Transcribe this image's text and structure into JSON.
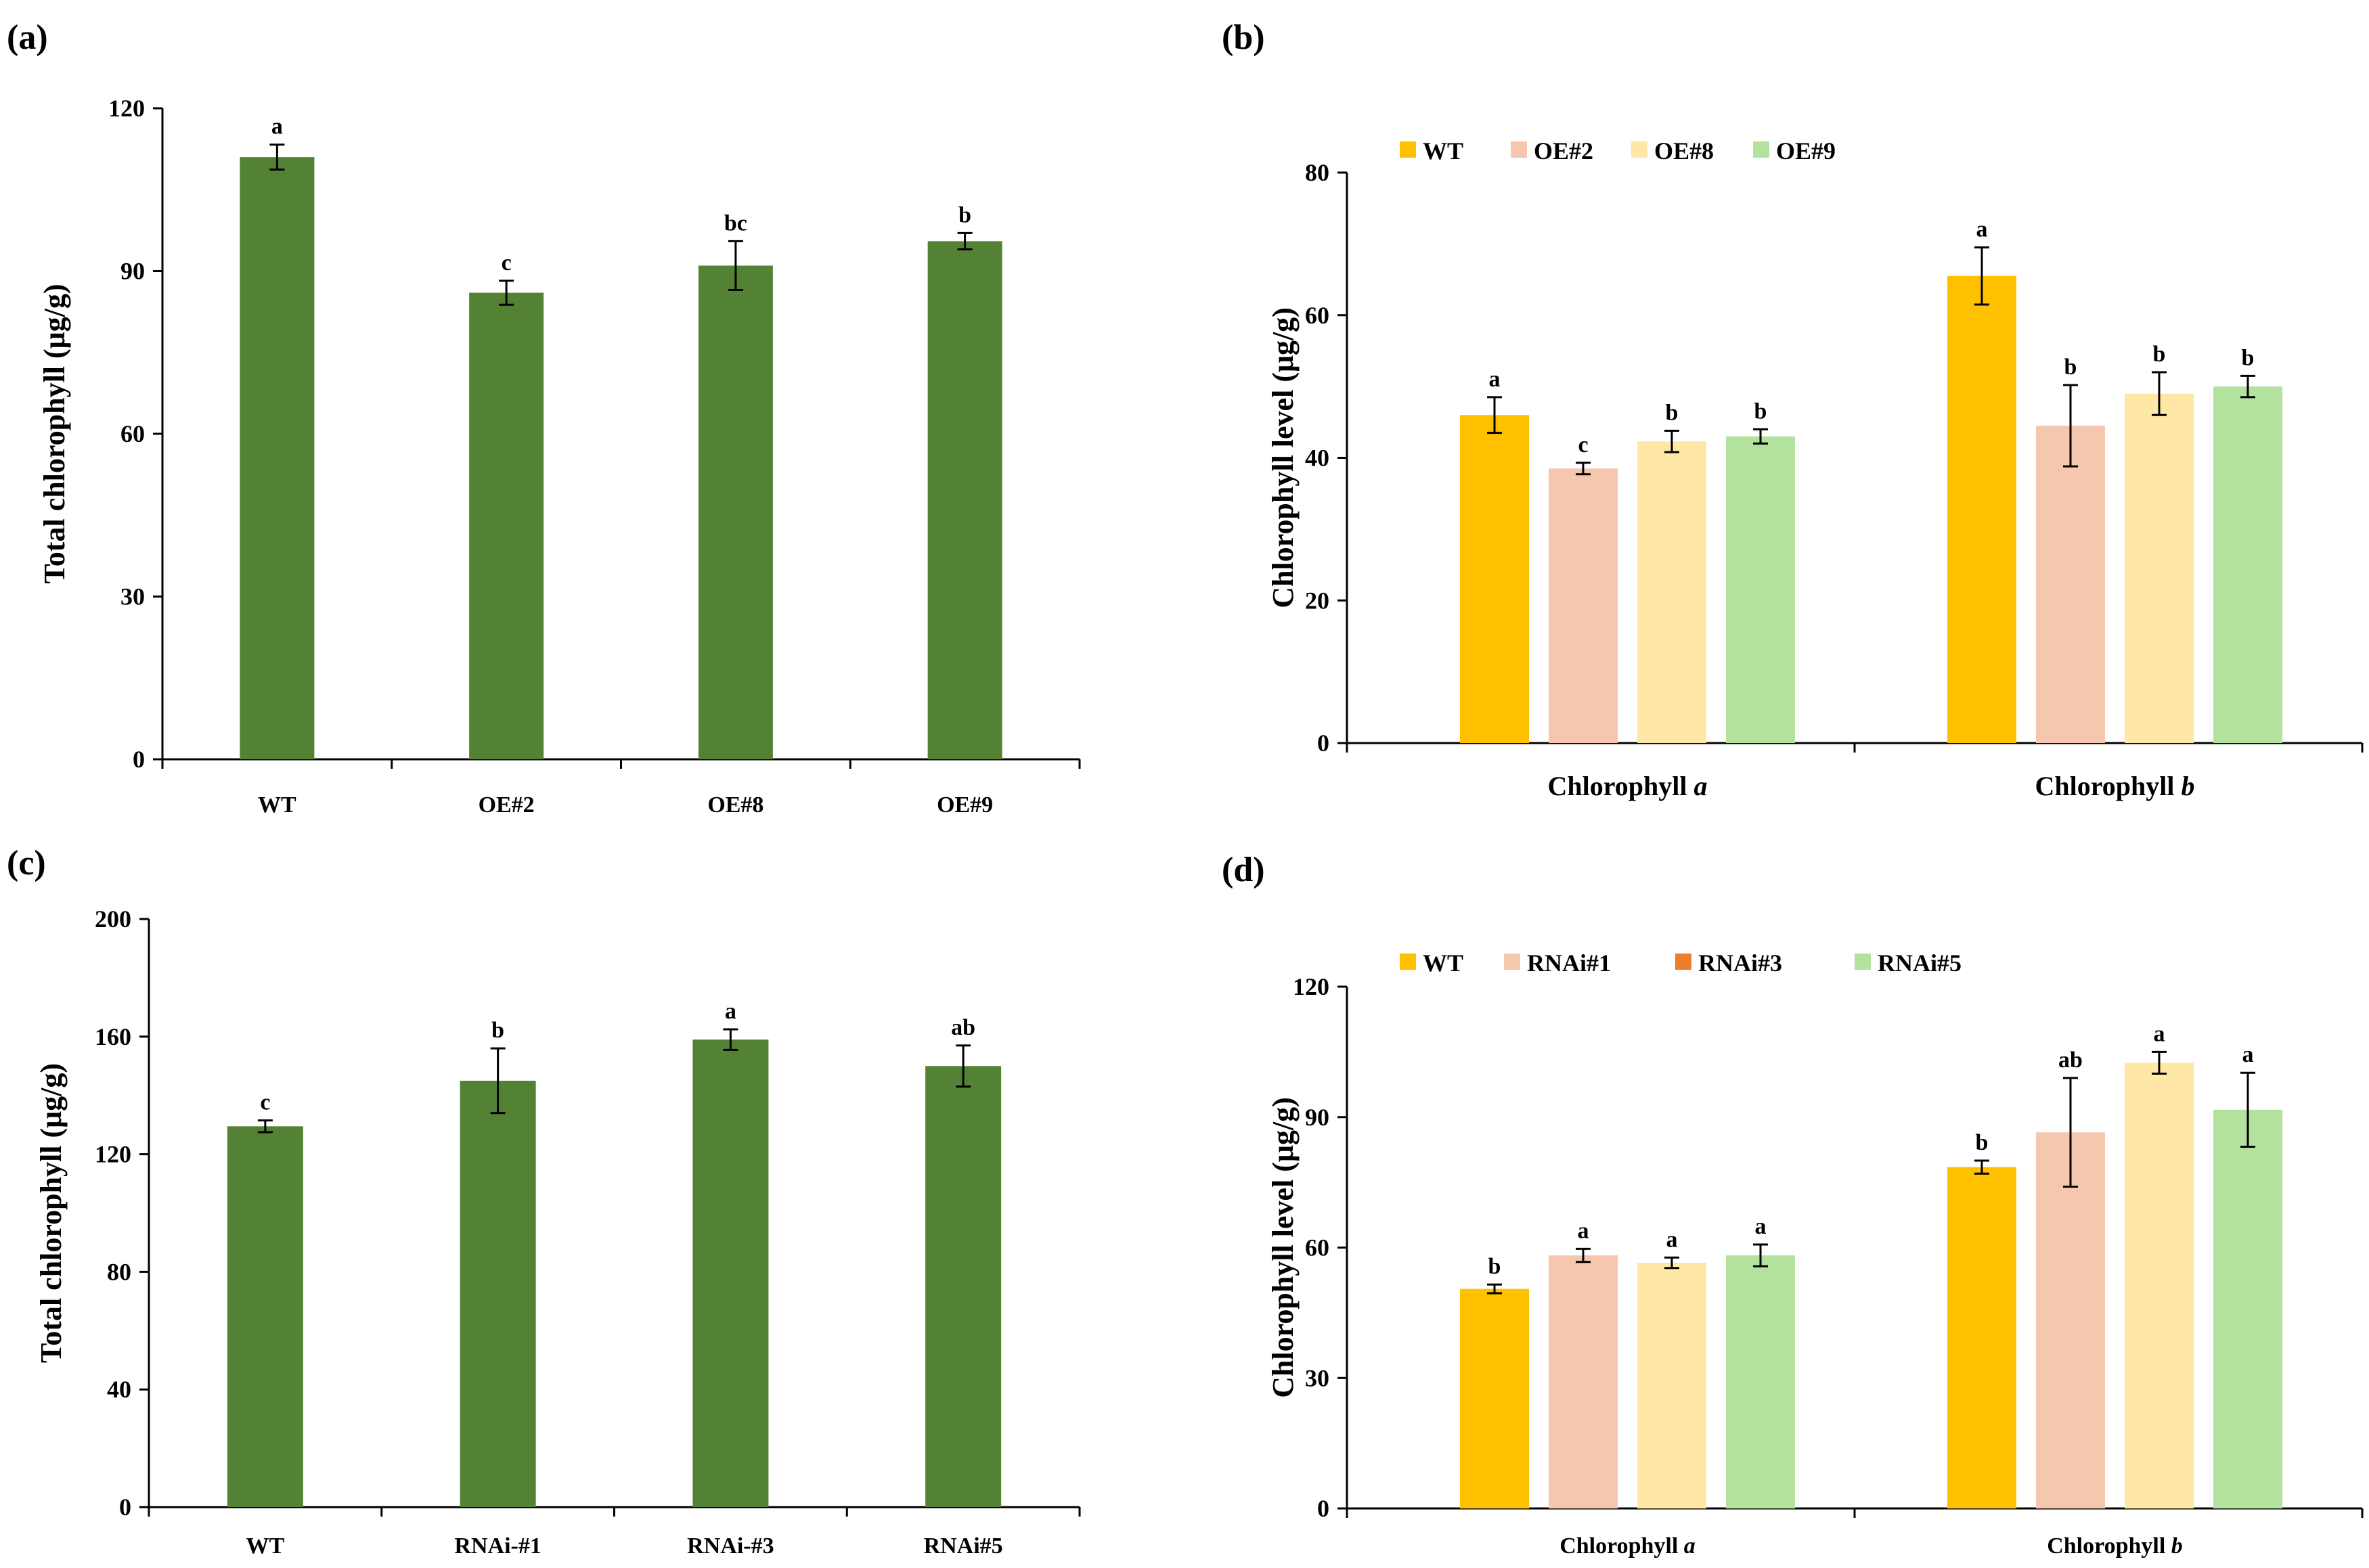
{
  "chart_data": [
    {
      "id": "a",
      "panel_label": "(a)",
      "type": "bar",
      "ylabel": "Total chlorophyll (μg/g)",
      "ylim": [
        0,
        120
      ],
      "yticks": [
        0,
        30,
        60,
        90,
        120
      ],
      "categories": [
        "WT",
        "OE#2",
        "OE#8",
        "OE#9"
      ],
      "values": [
        111,
        86,
        91,
        95.5
      ],
      "errors": [
        2.3,
        2.2,
        4.5,
        1.5
      ],
      "sig": [
        "a",
        "c",
        "bc",
        "b"
      ],
      "color": "#548235"
    },
    {
      "id": "b",
      "panel_label": "(b)",
      "type": "bar",
      "ylabel": "Chlorophyll level (μg/g)",
      "ylim": [
        0,
        80
      ],
      "yticks": [
        0,
        20,
        40,
        60,
        80
      ],
      "groups": [
        {
          "name": "Chlorophyll ",
          "italic": "a"
        },
        {
          "name": "Chlorophyll ",
          "italic": "b"
        }
      ],
      "series": [
        {
          "name": "WT",
          "color": "#FFC000",
          "values": [
            46,
            65.5
          ],
          "errors": [
            2.5,
            4
          ],
          "sig": [
            "a",
            "a"
          ]
        },
        {
          "name": "OE#2",
          "color": "#F4C7AE",
          "values": [
            38.5,
            44.5
          ],
          "errors": [
            0.8,
            5.7
          ],
          "sig": [
            "c",
            "b"
          ]
        },
        {
          "name": "OE#8",
          "color": "#FFE7A6",
          "values": [
            42.3,
            49
          ],
          "errors": [
            1.5,
            3
          ],
          "sig": [
            "b",
            "b"
          ]
        },
        {
          "name": "OE#9",
          "color": "#B3E19E",
          "values": [
            43,
            50
          ],
          "errors": [
            1,
            1.5
          ],
          "sig": [
            "b",
            "b"
          ]
        }
      ]
    },
    {
      "id": "c",
      "panel_label": "(c)",
      "type": "bar",
      "ylabel": "Total chlorophyll (μg/g)",
      "ylim": [
        0,
        200
      ],
      "yticks": [
        0,
        40,
        80,
        120,
        160,
        200
      ],
      "categories": [
        "WT",
        "RNAi-#1",
        "RNAi-#3",
        "RNAi#5"
      ],
      "values": [
        129.5,
        145,
        159,
        150
      ],
      "errors": [
        2,
        11,
        3.5,
        7
      ],
      "sig": [
        "c",
        "b",
        "a",
        "ab"
      ],
      "color": "#548235"
    },
    {
      "id": "d",
      "panel_label": "(d)",
      "type": "bar",
      "ylabel": "Chlorophyll level (μg/g)",
      "ylim": [
        0,
        120
      ],
      "yticks": [
        0,
        30,
        60,
        90,
        120
      ],
      "groups": [
        {
          "name": "Chlorophyll ",
          "italic": "a"
        },
        {
          "name": "Chlorophyll ",
          "italic": "b"
        }
      ],
      "legend_colors": [
        "#FFC000",
        "#F4C7AE",
        "#ED7D31",
        "#B3E19E"
      ],
      "series": [
        {
          "name": "WT",
          "color": "#FFC000",
          "values": [
            50.5,
            78.5
          ],
          "errors": [
            1,
            1.5
          ],
          "sig": [
            "b",
            "b"
          ]
        },
        {
          "name": "RNAi#1",
          "color": "#F4C7AE",
          "values": [
            58.2,
            86.5
          ],
          "errors": [
            1.5,
            12.5
          ],
          "sig": [
            "a",
            "ab"
          ]
        },
        {
          "name": "RNAi#3",
          "color": "#FFE7A6",
          "values": [
            56.5,
            102.5
          ],
          "errors": [
            1.2,
            2.5
          ],
          "sig": [
            "a",
            "a"
          ]
        },
        {
          "name": "RNAi#5",
          "color": "#B3E19E",
          "values": [
            58.2,
            91.7
          ],
          "errors": [
            2.5,
            8.5
          ],
          "sig": [
            "a",
            "a"
          ]
        }
      ]
    }
  ]
}
